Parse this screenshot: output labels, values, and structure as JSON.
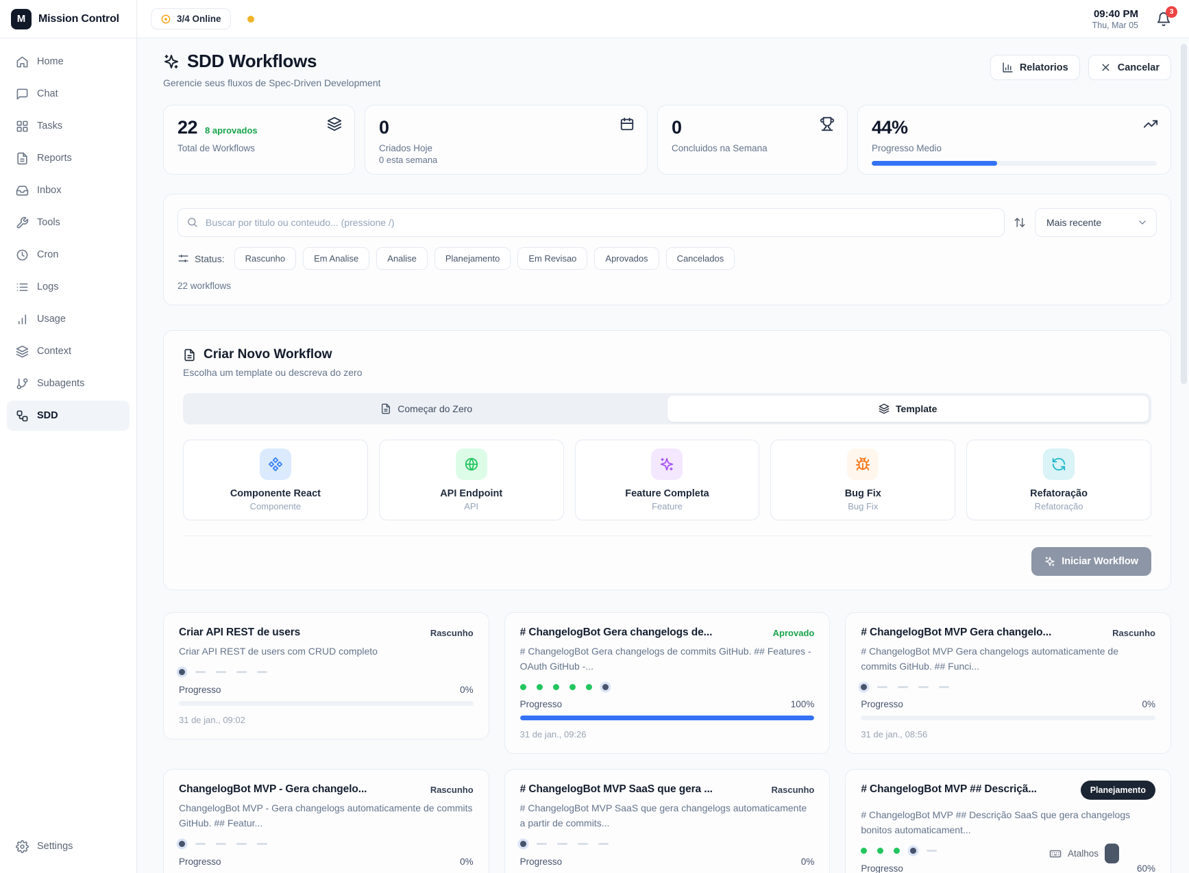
{
  "app": {
    "name": "Mission Control",
    "logo_letter": "M"
  },
  "header": {
    "online_badge": "3/4 Online",
    "time": "09:40 PM",
    "date": "Thu, Mar 05",
    "notification_count": "3"
  },
  "sidebar": {
    "items": [
      {
        "label": "Home",
        "icon": "home-icon"
      },
      {
        "label": "Chat",
        "icon": "chat-icon"
      },
      {
        "label": "Tasks",
        "icon": "grid-icon"
      },
      {
        "label": "Reports",
        "icon": "file-text-icon"
      },
      {
        "label": "Inbox",
        "icon": "inbox-icon"
      },
      {
        "label": "Tools",
        "icon": "wrench-icon"
      },
      {
        "label": "Cron",
        "icon": "clock-icon"
      },
      {
        "label": "Logs",
        "icon": "list-icon"
      },
      {
        "label": "Usage",
        "icon": "bar-chart-icon"
      },
      {
        "label": "Context",
        "icon": "layers-icon"
      },
      {
        "label": "Subagents",
        "icon": "branch-icon"
      },
      {
        "label": "SDD",
        "icon": "workflow-icon",
        "state": "active"
      }
    ],
    "settings_label": "Settings"
  },
  "page": {
    "title": "SDD Workflows",
    "subtitle": "Gerencie seus fluxos de Spec-Driven Development",
    "reports_button": "Relatorios",
    "cancel_button": "Cancelar"
  },
  "stats": [
    {
      "value": "22",
      "extra": "8 aprovados",
      "label": "Total de Workflows",
      "icon": "layers-icon"
    },
    {
      "value": "0",
      "label": "Criados Hoje",
      "sub": "0 esta semana",
      "icon": "calendar-icon"
    },
    {
      "value": "0",
      "label": "Concluidos na Semana",
      "icon": "trophy-icon"
    },
    {
      "value": "44%",
      "label": "Progresso Medio",
      "icon": "trending-icon",
      "progress_pct": 44
    }
  ],
  "search": {
    "placeholder": "Buscar por titulo ou conteudo... (pressione /)",
    "sort_value": "Mais recente",
    "status_label": "Status:",
    "filters": [
      "Rascunho",
      "Em Analise",
      "Analise",
      "Planejamento",
      "Em Revisao",
      "Aprovados",
      "Cancelados"
    ],
    "count": "22 workflows"
  },
  "create": {
    "title": "Criar Novo Workflow",
    "subtitle": "Escolha um template ou descreva do zero",
    "tabs": [
      {
        "label": "Começar do Zero",
        "icon": "file-text-icon"
      },
      {
        "label": "Template",
        "icon": "layers-icon",
        "state": "active"
      }
    ],
    "templates": [
      {
        "name": "Componente React",
        "sub": "Componente",
        "icon": "component-icon",
        "accent": "#3b82f6",
        "tile_bg": "#dbeafe"
      },
      {
        "name": "API Endpoint",
        "sub": "API",
        "icon": "globe-icon",
        "accent": "#22c55e",
        "tile_bg": "#dcfce7"
      },
      {
        "name": "Feature Completa",
        "sub": "Feature",
        "icon": "sparkles-icon",
        "accent": "#a855f7",
        "tile_bg": "#f3e8ff"
      },
      {
        "name": "Bug Fix",
        "sub": "Bug Fix",
        "icon": "bug-icon",
        "accent": "#f97316",
        "tile_bg": "#fff7ed"
      },
      {
        "name": "Refatoração",
        "sub": "Refatoração",
        "icon": "refresh-icon",
        "accent": "#22b8cd",
        "tile_bg": "#d9f3f6"
      }
    ],
    "start_button": "Iniciar Workflow"
  },
  "workflows": [
    {
      "title": "Criar API REST de users",
      "status": "Rascunho",
      "status_kind": "rascunho",
      "description": "Criar API REST de users com CRUD completo",
      "stages": [
        "current",
        "todo",
        "todo",
        "todo",
        "todo"
      ],
      "progress_label": "Progresso",
      "progress": "0%",
      "progress_pct": 0,
      "date": "31 de jan., 09:02"
    },
    {
      "title": "# ChangelogBot Gera changelogs de...",
      "status": "Aprovado",
      "status_kind": "aprovado",
      "description": "# ChangelogBot Gera changelogs de commits GitHub. ## Features - OAuth GitHub -...",
      "stages": [
        "done",
        "done",
        "done",
        "done",
        "done",
        "current"
      ],
      "progress_label": "Progresso",
      "progress": "100%",
      "progress_pct": 100,
      "date": "31 de jan., 09:26"
    },
    {
      "title": "# ChangelogBot MVP Gera changelo...",
      "status": "Rascunho",
      "status_kind": "rascunho",
      "description": "# ChangelogBot MVP Gera changelogs automaticamente de commits GitHub. ## Funci...",
      "stages": [
        "current",
        "todo",
        "todo",
        "todo",
        "todo"
      ],
      "progress_label": "Progresso",
      "progress": "0%",
      "progress_pct": 0,
      "date": "31 de jan., 08:56"
    },
    {
      "title": "ChangelogBot MVP - Gera changelo...",
      "status": "Rascunho",
      "status_kind": "rascunho",
      "description": "ChangelogBot MVP - Gera changelogs automaticamente de commits GitHub. ## Featur...",
      "stages": [
        "current",
        "todo",
        "todo",
        "todo",
        "todo"
      ],
      "progress_label": "Progresso",
      "progress": "0%",
      "progress_pct": 0
    },
    {
      "title": "# ChangelogBot MVP SaaS que gera ...",
      "status": "Rascunho",
      "status_kind": "rascunho",
      "description": "# ChangelogBot MVP SaaS que gera changelogs automaticamente a partir de commits...",
      "stages": [
        "current",
        "todo",
        "todo",
        "todo",
        "todo"
      ],
      "progress_label": "Progresso",
      "progress": "0%",
      "progress_pct": 0
    },
    {
      "title": "# ChangelogBot MVP ## Descriçã...",
      "status": "Planejamento",
      "status_kind": "planejamento",
      "description": "# ChangelogBot MVP ## Descrição SaaS que gera changelogs bonitos automaticament...",
      "stages": [
        "done",
        "done",
        "done",
        "current",
        "todo"
      ],
      "progress_label": "Progresso",
      "progress": "60%",
      "progress_pct": 60
    }
  ],
  "shortcuts_hint": {
    "label": "Atalhos"
  },
  "theme": {
    "accent_blue": "#3472f5",
    "green": "#16a34a",
    "dark_navy": "#0f172a",
    "amber": "#f0b429",
    "red": "#ef4444"
  }
}
